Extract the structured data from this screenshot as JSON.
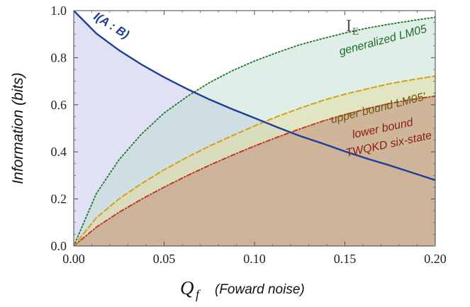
{
  "chart_data": {
    "type": "line",
    "xlabel_symbol": "Q",
    "xlabel_subscript": "f",
    "xlabel_note": "(Foward noise)",
    "ylabel": "Information (bits)",
    "xlim": [
      0,
      0.2
    ],
    "ylim": [
      0,
      1.0
    ],
    "x_ticks": [
      "0.00",
      "0.05",
      "0.10",
      "0.15",
      "0.20"
    ],
    "y_ticks": [
      "0.0",
      "0.2",
      "0.4",
      "0.6",
      "0.8",
      "1.0"
    ],
    "x": [
      0,
      0.0125,
      0.025,
      0.0375,
      0.05,
      0.0625,
      0.075,
      0.0875,
      0.1,
      0.1125,
      0.125,
      0.1375,
      0.15,
      0.1625,
      0.175,
      0.1875,
      0.2
    ],
    "series": [
      {
        "name": "I(A : B)",
        "style": "solid",
        "color": "#1f3d99",
        "values": [
          1.0,
          0.903,
          0.832,
          0.771,
          0.717,
          0.668,
          0.623,
          0.582,
          0.544,
          0.505,
          0.468,
          0.436,
          0.402,
          0.371,
          0.342,
          0.311,
          0.28
        ]
      },
      {
        "name": "generalized LM05",
        "style": "dotted",
        "color": "#2e7d2e",
        "values": [
          0.0,
          0.223,
          0.366,
          0.476,
          0.565,
          0.634,
          0.694,
          0.744,
          0.786,
          0.822,
          0.855,
          0.881,
          0.905,
          0.926,
          0.943,
          0.958,
          0.972
        ]
      },
      {
        "name": "upper bound LM05'",
        "style": "dashed",
        "color": "#d4a017",
        "values": [
          0.0,
          0.12,
          0.2,
          0.265,
          0.324,
          0.376,
          0.424,
          0.468,
          0.51,
          0.55,
          0.585,
          0.618,
          0.645,
          0.668,
          0.69,
          0.707,
          0.722
        ]
      },
      {
        "name": "lower bound TWQKD six-state",
        "style": "dashdot",
        "color": "#c23a1e",
        "values": [
          0.0,
          0.08,
          0.143,
          0.199,
          0.25,
          0.298,
          0.343,
          0.385,
          0.425,
          0.462,
          0.497,
          0.53,
          0.558,
          0.584,
          0.606,
          0.623,
          0.637
        ]
      }
    ],
    "labels": {
      "iab": "I(A : B)",
      "ie_symbol": "I",
      "ie_subscript": "E",
      "generalized": "generalized LM05",
      "upper": "upper bound LM05'",
      "lower_line1": "lower bound",
      "lower_line2": "TWQKD six-state"
    },
    "grid": false,
    "legend": "none"
  }
}
